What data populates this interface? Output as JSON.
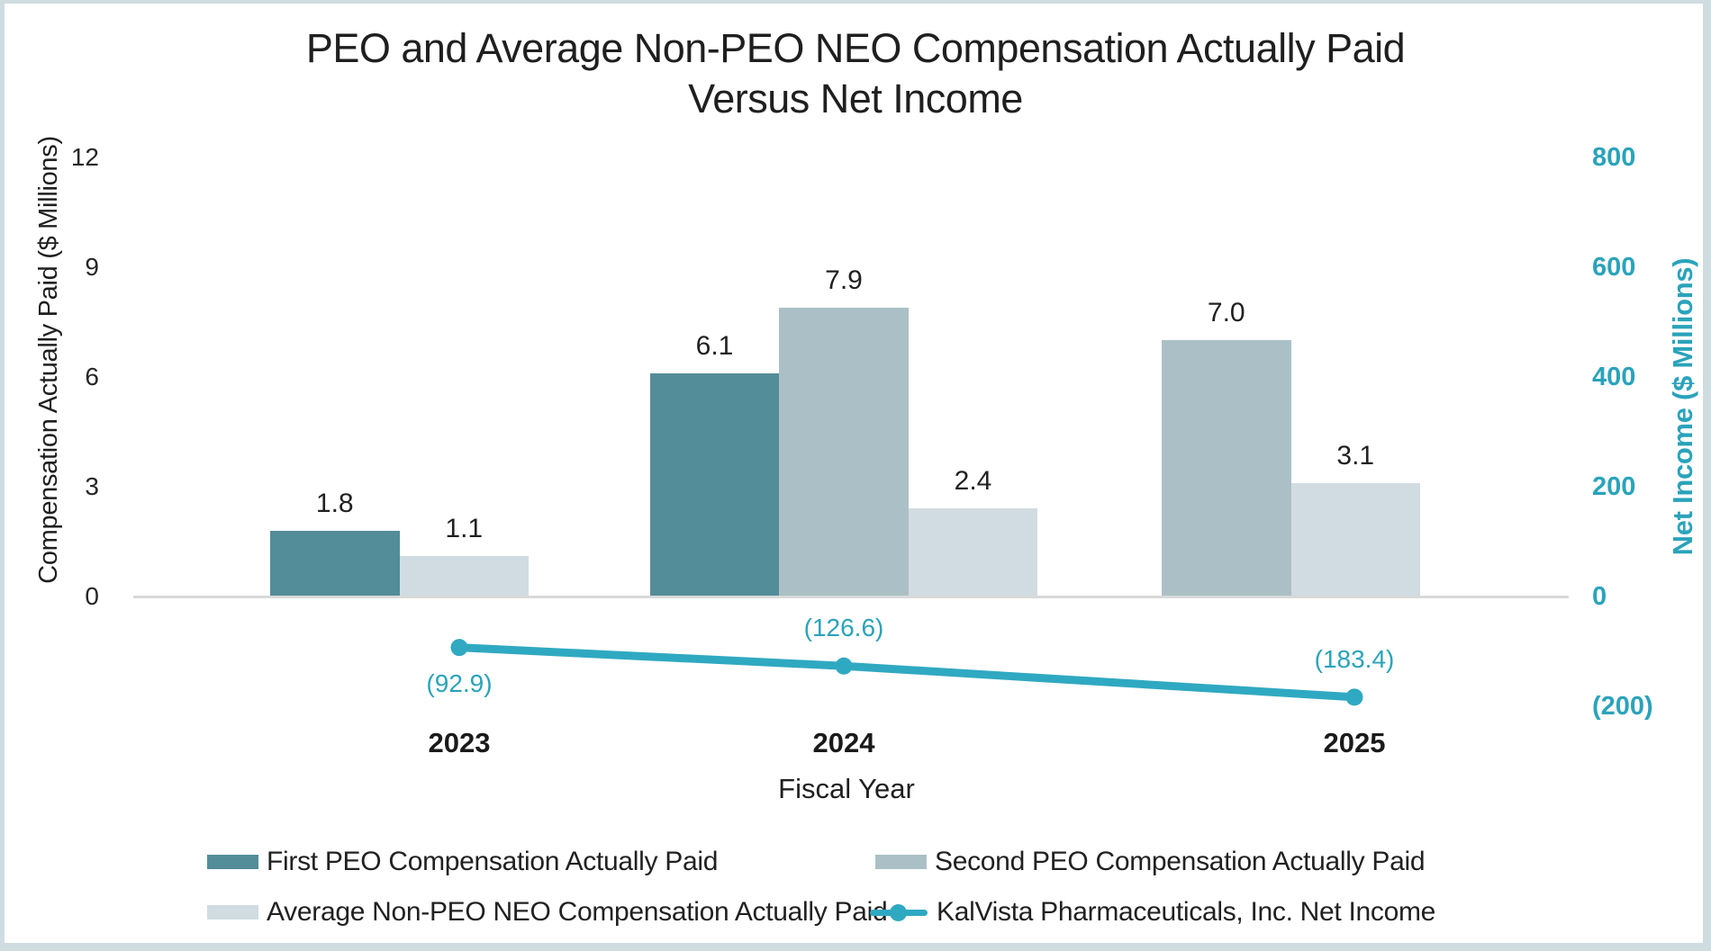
{
  "chart_data": {
    "type": "combo_bar_line",
    "categories": [
      "2023",
      "2024",
      "2025"
    ],
    "series": [
      {
        "key": "first-peo",
        "name": "First PEO Compensation Actually Paid",
        "type": "bar",
        "axis": "left",
        "color": "#538D99",
        "values": [
          1.8,
          6.1,
          null
        ],
        "labels": [
          "1.8",
          "6.1",
          null
        ]
      },
      {
        "key": "second-peo",
        "name": "Second PEO Compensation Actually Paid",
        "type": "bar",
        "axis": "left",
        "color": "#ABC0C6",
        "values": [
          null,
          7.9,
          7.0
        ],
        "labels": [
          null,
          "7.9",
          "7.0"
        ]
      },
      {
        "key": "avg-non-peo-neo",
        "name": "Average Non-PEO NEO Compensation Actually Paid",
        "type": "bar",
        "axis": "left",
        "color": "#D0DCE1",
        "values": [
          1.1,
          2.4,
          3.1
        ],
        "labels": [
          "1.1",
          "2.4",
          "3.1"
        ]
      },
      {
        "key": "net-income",
        "name": "KalVista Pharmaceuticals, Inc. Net Income",
        "type": "line",
        "axis": "right",
        "color": "#2FA9C1",
        "values": [
          -92.9,
          -126.6,
          -183.4
        ],
        "labels": [
          "(92.9)",
          "(126.6)",
          "(183.4)"
        ],
        "label_placement": [
          "below",
          "above",
          "above"
        ]
      }
    ],
    "title": "PEO and Average Non-PEO NEO Compensation Actually Paid Versus Net Income",
    "title_lines": [
      "PEO and Average Non-PEO NEO Compensation Actually Paid",
      "Versus Net Income"
    ],
    "xlabel": "Fiscal Year",
    "left_axis": {
      "label": "Compensation Actually Paid ($ Millions)",
      "ticks": [
        12,
        9,
        6,
        3,
        0
      ],
      "range": [
        0,
        12
      ],
      "text_color": "#262626"
    },
    "right_axis": {
      "label": "Net Income ($ Millions)",
      "ticks": [
        800,
        600,
        400,
        200,
        0,
        -200
      ],
      "tick_labels": [
        "800",
        "600",
        "400",
        "200",
        "0",
        "(200)"
      ],
      "range": [
        -200,
        800
      ],
      "text_color": "#2AA3BB"
    },
    "gridlines": false,
    "legend_position": "bottom",
    "baseline_color": "#D9D9D9",
    "background_color": "#FFFFFF",
    "frame_color": "#CFDDE1"
  }
}
